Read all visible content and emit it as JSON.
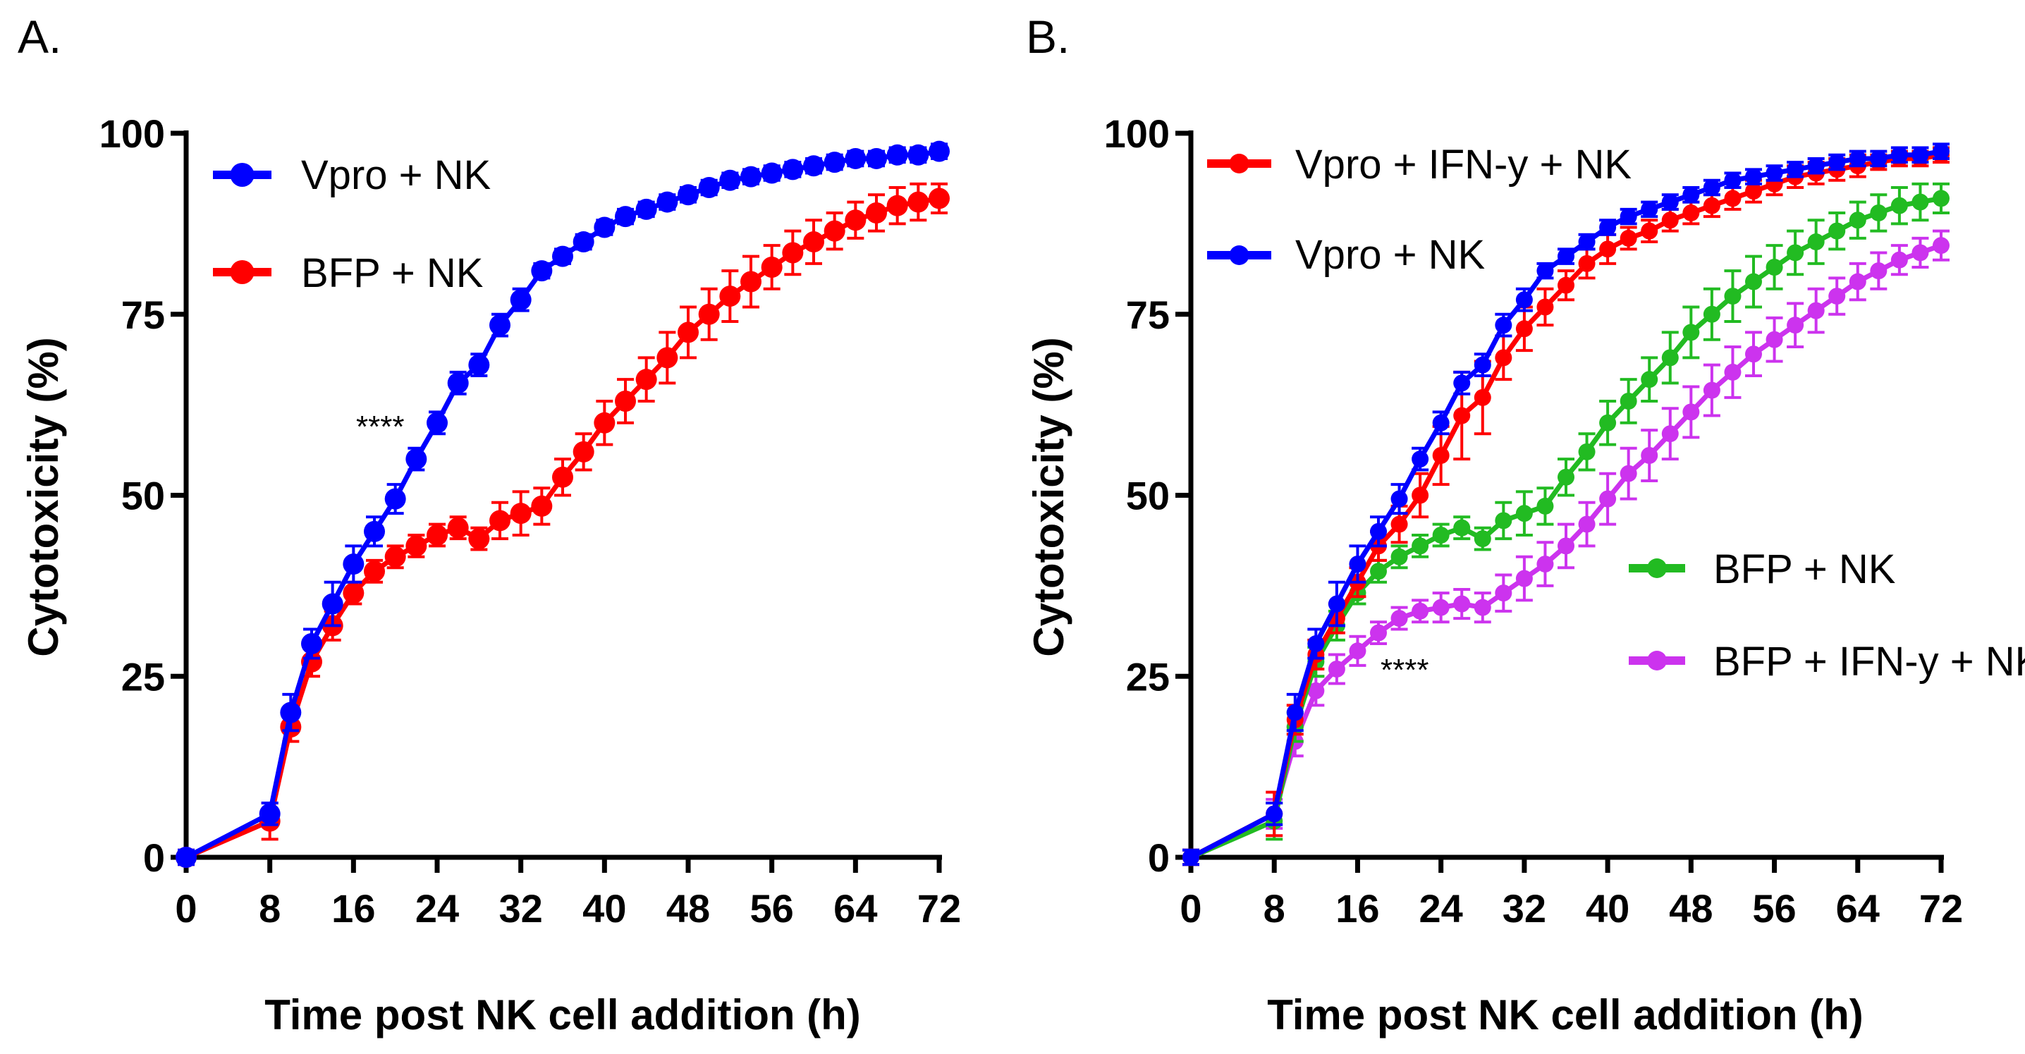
{
  "chart_data": [
    {
      "type": "line",
      "panel_label": "A.",
      "xlabel": "Time post NK cell addition (h)",
      "ylabel": "Cytotoxicity (%)",
      "xlim": [
        0,
        72
      ],
      "ylim": [
        0,
        100
      ],
      "xticks": [
        0,
        8,
        16,
        24,
        32,
        40,
        48,
        56,
        64,
        72
      ],
      "yticks": [
        0,
        25,
        50,
        75,
        100
      ],
      "annotation": "****",
      "legend_placement": "top-left",
      "x": [
        0,
        8,
        10,
        12,
        14,
        16,
        18,
        20,
        22,
        24,
        26,
        28,
        30,
        32,
        34,
        36,
        38,
        40,
        42,
        44,
        46,
        48,
        50,
        52,
        54,
        56,
        58,
        60,
        62,
        64,
        66,
        68,
        70,
        72
      ],
      "series": [
        {
          "name": "Vpro + NK",
          "color": "#0000ff",
          "values": [
            0,
            6,
            20,
            29.5,
            35,
            40.5,
            45,
            49.5,
            55,
            60,
            65.5,
            68,
            73.5,
            77,
            81,
            83,
            85,
            87,
            88.5,
            89.5,
            90.5,
            91.5,
            92.5,
            93.5,
            94,
            94.5,
            95,
            95.5,
            96,
            96.5,
            96.5,
            97,
            97,
            97.5
          ],
          "error": [
            1,
            1.5,
            2.5,
            2,
            3,
            2.5,
            2,
            2,
            1.5,
            1.5,
            1.5,
            1.5,
            1.5,
            1.5,
            1,
            1,
            1,
            1,
            1,
            1,
            1,
            1,
            1,
            1,
            1,
            1,
            1,
            1,
            1,
            1,
            1,
            1,
            1,
            1
          ]
        },
        {
          "name": "BFP + NK",
          "color": "#ff0000",
          "values": [
            0,
            5,
            18,
            27,
            32,
            36.5,
            39.5,
            41.5,
            43,
            44.5,
            45.5,
            44,
            46.5,
            47.5,
            48.5,
            52.5,
            56,
            60,
            63,
            66,
            69,
            72.5,
            75,
            77.5,
            79.5,
            81.5,
            83.5,
            85,
            86.5,
            88,
            89,
            90,
            90.5,
            91
          ],
          "error": [
            1,
            2.5,
            2,
            2,
            2,
            1.5,
            1.5,
            1.5,
            1.5,
            1.5,
            1.5,
            1.5,
            2.5,
            3,
            2.5,
            2.5,
            2.5,
            3,
            3,
            3,
            3.5,
            3.5,
            3.5,
            3.5,
            3.5,
            3,
            3,
            3,
            2.5,
            2.5,
            2.5,
            2.5,
            2.5,
            2
          ]
        }
      ]
    },
    {
      "type": "line",
      "panel_label": "B.",
      "xlabel": "Time post NK cell addition (h)",
      "ylabel": "Cytotoxicity (%)",
      "xlim": [
        0,
        72
      ],
      "ylim": [
        0,
        100
      ],
      "xticks": [
        0,
        8,
        16,
        24,
        32,
        40,
        48,
        56,
        64,
        72
      ],
      "yticks": [
        0,
        25,
        50,
        75,
        100
      ],
      "annotation": "****",
      "legend_placement": "top-left and center-right",
      "x": [
        0,
        8,
        10,
        12,
        14,
        16,
        18,
        20,
        22,
        24,
        26,
        28,
        30,
        32,
        34,
        36,
        38,
        40,
        42,
        44,
        46,
        48,
        50,
        52,
        54,
        56,
        58,
        60,
        62,
        64,
        66,
        68,
        70,
        72
      ],
      "series": [
        {
          "name": "Vpro + IFN-y + NK",
          "color": "#ff0000",
          "values": [
            0,
            6,
            19,
            28,
            33,
            38,
            43,
            46,
            50,
            55.5,
            61,
            63.5,
            69,
            73,
            76,
            79,
            82,
            84,
            85.5,
            86.5,
            88,
            89,
            90,
            91,
            92,
            93,
            94,
            94.5,
            95,
            95.5,
            96,
            96.5,
            96.5,
            97
          ],
          "error": [
            1,
            3,
            2,
            2,
            2,
            2,
            2,
            2.5,
            3,
            4,
            6,
            5,
            3,
            3,
            2.5,
            2,
            2,
            2,
            1.5,
            1.5,
            1.5,
            1.5,
            1.5,
            1.5,
            1.5,
            1.5,
            1.5,
            1.5,
            1.5,
            1.5,
            1,
            1,
            1,
            1
          ]
        },
        {
          "name": "Vpro + NK",
          "color": "#0000ff",
          "values": [
            0,
            6,
            20,
            29.5,
            35,
            40.5,
            45,
            49.5,
            55,
            60,
            65.5,
            68,
            73.5,
            77,
            81,
            83,
            85,
            87,
            88.5,
            89.5,
            90.5,
            91.5,
            92.5,
            93.5,
            94,
            94.5,
            95,
            95.5,
            96,
            96.5,
            96.5,
            97,
            97,
            97.5
          ],
          "error": [
            1,
            1.5,
            2.5,
            2,
            3,
            2.5,
            2,
            2,
            1.5,
            1.5,
            1.5,
            1.5,
            1.5,
            1.5,
            1,
            1,
            1,
            1,
            1,
            1,
            1,
            1,
            1,
            1,
            1,
            1,
            1,
            1,
            1,
            1,
            1,
            1,
            1,
            1
          ]
        },
        {
          "name": "BFP + NK",
          "color": "#22bb22",
          "values": [
            0,
            5,
            18,
            27,
            32,
            36.5,
            39.5,
            41.5,
            43,
            44.5,
            45.5,
            44,
            46.5,
            47.5,
            48.5,
            52.5,
            56,
            60,
            63,
            66,
            69,
            72.5,
            75,
            77.5,
            79.5,
            81.5,
            83.5,
            85,
            86.5,
            88,
            89,
            90,
            90.5,
            91
          ],
          "error": [
            1,
            2.5,
            2,
            2,
            2,
            1.5,
            1.5,
            1.5,
            1.5,
            1.5,
            1.5,
            1.5,
            2.5,
            3,
            2.5,
            2.5,
            2.5,
            3,
            3,
            3,
            3.5,
            3.5,
            3.5,
            3.5,
            3.5,
            3,
            3,
            3,
            2.5,
            2.5,
            2.5,
            2.5,
            2.5,
            2
          ]
        },
        {
          "name": "BFP +  IFN-y + NK",
          "color": "#cc33ee",
          "values": [
            0,
            6,
            16,
            23,
            26,
            28.5,
            31,
            33,
            34,
            34.5,
            35,
            34.5,
            36.5,
            38.5,
            40.5,
            43,
            46,
            49.5,
            53,
            55.5,
            58.5,
            61.5,
            64.5,
            67,
            69.5,
            71.5,
            73.5,
            75.5,
            77.5,
            79.5,
            81,
            82.5,
            83.5,
            84.5
          ],
          "error": [
            1,
            2,
            2,
            2,
            2,
            2,
            1.5,
            1.5,
            1.5,
            2,
            2,
            2,
            2.5,
            3,
            3,
            3,
            3,
            3.5,
            3.5,
            3.5,
            3.5,
            3.5,
            3.5,
            3.5,
            3,
            3,
            3,
            3,
            2.5,
            2.5,
            2.5,
            2,
            2,
            2
          ]
        }
      ]
    }
  ]
}
